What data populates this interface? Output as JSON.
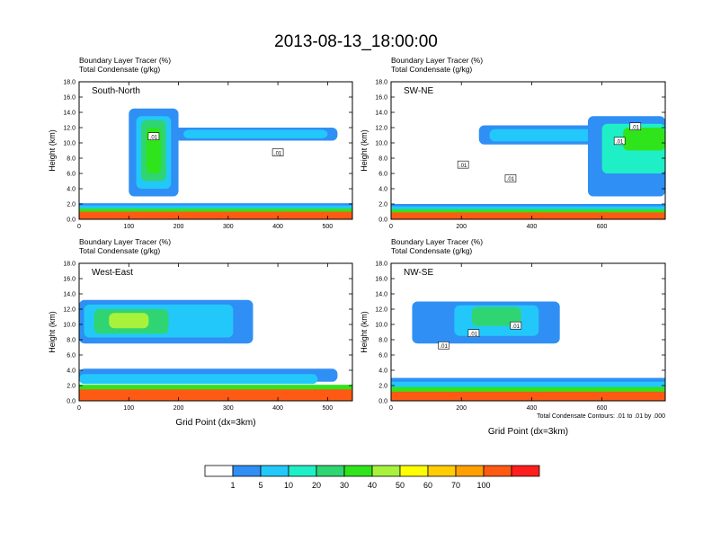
{
  "title": "2013-08-13_18:00:00",
  "colors": {
    "levels": [
      "#ffffff",
      "#2f8ff5",
      "#23c8fa",
      "#1fefc6",
      "#2fd572",
      "#30e41c",
      "#a8f23c",
      "#ffff00",
      "#ffcd00",
      "#ffa000",
      "#ff5a14",
      "#ff1e1e"
    ],
    "contour": "#000000"
  },
  "chart_data": [
    {
      "type": "heatmap",
      "label": "South-North",
      "subtitle1": "Boundary Layer Tracer   (%)",
      "subtitle2": "Total Condensate   (g/kg)",
      "ylabel": "Height (km)",
      "xlabel": "",
      "xlim": [
        0,
        550
      ],
      "ylim": [
        0,
        18
      ],
      "xticks": [
        "0",
        "100",
        "200",
        "300",
        "400",
        "500"
      ],
      "yticks": [
        "0.0",
        "2.0",
        "4.0",
        "6.0",
        "8.0",
        "10.0",
        "12.0",
        "14.0",
        "16.0",
        "18.0"
      ],
      "contour_labels": [
        {
          "text": ".01",
          "x": 150,
          "y": 10.8
        },
        {
          "text": ".01",
          "x": 400,
          "y": 8.7
        }
      ],
      "features": [
        {
          "level": 1,
          "x": [
            0,
            550
          ],
          "y": [
            0,
            2.1
          ]
        },
        {
          "level": 2,
          "x": [
            0,
            550
          ],
          "y": [
            0,
            1.8
          ]
        },
        {
          "level": 5,
          "x": [
            0,
            550
          ],
          "y": [
            0,
            1.4
          ]
        },
        {
          "level": 10,
          "x": [
            0,
            550
          ],
          "y": [
            0,
            1.0
          ]
        },
        {
          "level": 1,
          "x": [
            175,
            520
          ],
          "y": [
            10.3,
            12.0
          ]
        },
        {
          "level": 2,
          "x": [
            210,
            500
          ],
          "y": [
            10.6,
            11.7
          ]
        },
        {
          "level": 1,
          "x": [
            100,
            200
          ],
          "y": [
            3,
            14.5
          ]
        },
        {
          "level": 2,
          "x": [
            115,
            185
          ],
          "y": [
            4,
            13.5
          ]
        },
        {
          "level": 4,
          "x": [
            125,
            175
          ],
          "y": [
            5,
            13
          ]
        },
        {
          "level": 5,
          "x": [
            135,
            165
          ],
          "y": [
            6,
            12
          ]
        }
      ]
    },
    {
      "type": "heatmap",
      "label": "SW-NE",
      "subtitle1": "Boundary Layer Tracer   (%)",
      "subtitle2": "Total Condensate   (g/kg)",
      "ylabel": "Height (km)",
      "xlabel": "",
      "xlim": [
        0,
        780
      ],
      "ylim": [
        0,
        18
      ],
      "xticks": [
        "0",
        "200",
        "400",
        "600"
      ],
      "yticks": [
        "0.0",
        "2.0",
        "4.0",
        "6.0",
        "8.0",
        "10.0",
        "12.0",
        "14.0",
        "16.0",
        "18.0"
      ],
      "contour_labels": [
        {
          "text": ".01",
          "x": 205,
          "y": 7.1
        },
        {
          "text": ".01",
          "x": 340,
          "y": 5.3
        },
        {
          "text": ".01",
          "x": 650,
          "y": 10.2
        },
        {
          "text": ".01",
          "x": 695,
          "y": 12.1
        }
      ],
      "features": [
        {
          "level": 1,
          "x": [
            0,
            780
          ],
          "y": [
            0,
            2.0
          ]
        },
        {
          "level": 2,
          "x": [
            0,
            780
          ],
          "y": [
            0,
            1.7
          ]
        },
        {
          "level": 5,
          "x": [
            0,
            780
          ],
          "y": [
            0,
            1.3
          ]
        },
        {
          "level": 10,
          "x": [
            0,
            780
          ],
          "y": [
            0,
            0.9
          ]
        },
        {
          "level": 1,
          "x": [
            250,
            620
          ],
          "y": [
            9.8,
            12.3
          ]
        },
        {
          "level": 2,
          "x": [
            280,
            590
          ],
          "y": [
            10.2,
            11.8
          ]
        },
        {
          "level": 1,
          "x": [
            560,
            780
          ],
          "y": [
            3,
            13.5
          ]
        },
        {
          "level": 3,
          "x": [
            600,
            780
          ],
          "y": [
            6,
            12.5
          ]
        },
        {
          "level": 5,
          "x": [
            660,
            780
          ],
          "y": [
            9,
            12
          ]
        }
      ]
    },
    {
      "type": "heatmap",
      "label": "West-East",
      "subtitle1": "Boundary Layer Tracer   (%)",
      "subtitle2": "Total Condensate   (g/kg)",
      "ylabel": "Height (km)",
      "xlabel": "Grid Point (dx=3km)",
      "xlim": [
        0,
        550
      ],
      "ylim": [
        0,
        18
      ],
      "xticks": [
        "0",
        "100",
        "200",
        "300",
        "400",
        "500"
      ],
      "yticks": [
        "0.0",
        "2.0",
        "4.0",
        "6.0",
        "8.0",
        "10.0",
        "12.0",
        "14.0",
        "16.0",
        "18.0"
      ],
      "contour_labels": [],
      "features": [
        {
          "level": 1,
          "x": [
            0,
            520
          ],
          "y": [
            2.5,
            4.2
          ]
        },
        {
          "level": 2,
          "x": [
            0,
            480
          ],
          "y": [
            2.2,
            3.5
          ]
        },
        {
          "level": 5,
          "x": [
            0,
            550
          ],
          "y": [
            0,
            2.1
          ]
        },
        {
          "level": 10,
          "x": [
            0,
            550
          ],
          "y": [
            0,
            1.5
          ]
        },
        {
          "level": 1,
          "x": [
            0,
            350
          ],
          "y": [
            7.5,
            13.2
          ]
        },
        {
          "level": 2,
          "x": [
            10,
            310
          ],
          "y": [
            8.3,
            12.6
          ]
        },
        {
          "level": 4,
          "x": [
            30,
            180
          ],
          "y": [
            8.8,
            12
          ]
        },
        {
          "level": 6,
          "x": [
            60,
            140
          ],
          "y": [
            9.5,
            11.5
          ]
        }
      ]
    },
    {
      "type": "heatmap",
      "label": "NW-SE",
      "subtitle1": "Boundary Layer Tracer   (%)",
      "subtitle2": "Total Condensate   (g/kg)",
      "ylabel": "Height (km)",
      "xlabel": "Grid Point (dx=3km)",
      "xlim": [
        0,
        780
      ],
      "ylim": [
        0,
        18
      ],
      "xticks": [
        "0",
        "200",
        "400",
        "600"
      ],
      "yticks": [
        "0.0",
        "2.0",
        "4.0",
        "6.0",
        "8.0",
        "10.0",
        "12.0",
        "14.0",
        "16.0",
        "18.0"
      ],
      "contour_labels": [
        {
          "text": ".01",
          "x": 150,
          "y": 7.2
        },
        {
          "text": ".01",
          "x": 235,
          "y": 8.8
        },
        {
          "text": ".01",
          "x": 355,
          "y": 9.8
        }
      ],
      "note": "Total Condensate Contours: .01 to .01 by .000",
      "features": [
        {
          "level": 1,
          "x": [
            0,
            780
          ],
          "y": [
            0,
            3.0
          ]
        },
        {
          "level": 2,
          "x": [
            0,
            780
          ],
          "y": [
            0,
            2.5
          ]
        },
        {
          "level": 5,
          "x": [
            0,
            780
          ],
          "y": [
            0,
            1.8
          ]
        },
        {
          "level": 10,
          "x": [
            0,
            780
          ],
          "y": [
            0,
            1.2
          ]
        },
        {
          "level": 1,
          "x": [
            60,
            480
          ],
          "y": [
            7.5,
            13
          ]
        },
        {
          "level": 2,
          "x": [
            180,
            420
          ],
          "y": [
            8.5,
            12.5
          ]
        },
        {
          "level": 4,
          "x": [
            230,
            370
          ],
          "y": [
            9.8,
            12.3
          ]
        }
      ]
    }
  ],
  "legend": {
    "labels": [
      "1",
      "5",
      "10",
      "20",
      "30",
      "40",
      "50",
      "60",
      "70",
      "100"
    ]
  }
}
